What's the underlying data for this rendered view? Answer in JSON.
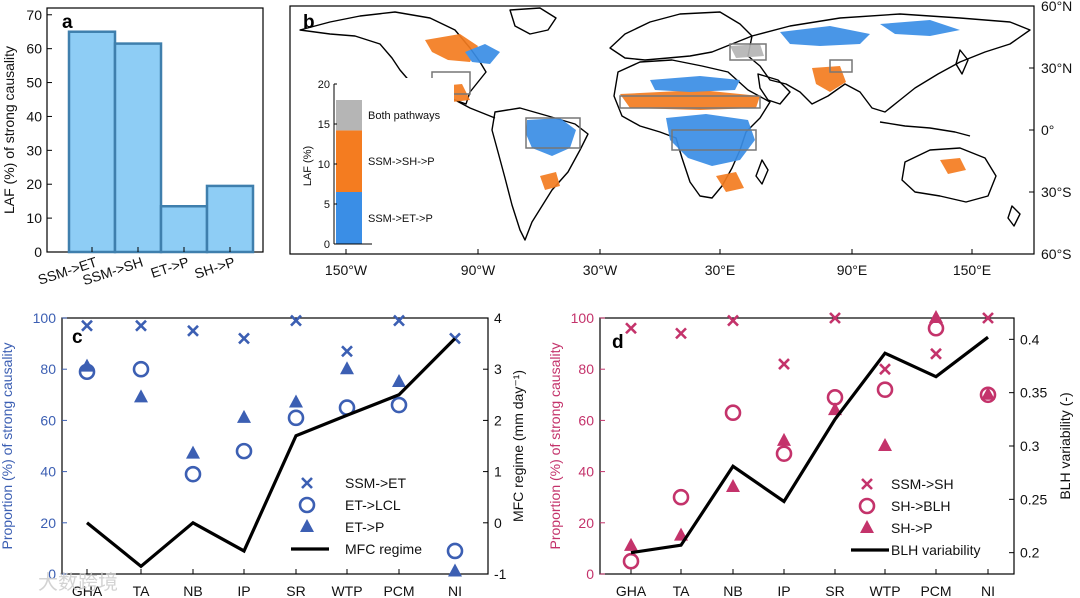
{
  "colors": {
    "bar_fill": "#8ecdf5",
    "bar_stroke": "#3f7fad",
    "blue": "#3c5fb3",
    "pink": "#c4336b",
    "orange": "#f47c20",
    "map_blue": "#3a8ee6",
    "gray": "#b5b5b5",
    "black": "#000000"
  },
  "watermark": "大数跨境",
  "panel_a": {
    "letter": "a",
    "chart_data": {
      "type": "bar",
      "categories": [
        "SSM->ET",
        "SSM->SH",
        "ET->P",
        "SH->P"
      ],
      "values": [
        65,
        61.5,
        13.5,
        19.5
      ],
      "ylabel": "LAF (%) of strong causality",
      "ylim": [
        0,
        72
      ],
      "yticks": [
        0,
        10,
        20,
        30,
        40,
        50,
        60,
        70
      ]
    }
  },
  "panel_b": {
    "letter": "b",
    "x_ticks": [
      "150°W",
      "90°W",
      "30°W",
      "30°E",
      "90°E",
      "150°E"
    ],
    "y_ticks": [
      "60°N",
      "30°N",
      "0°",
      "30°S",
      "60°S"
    ],
    "inset": {
      "ylabel": "LAF (%)",
      "yticks": [
        0,
        5,
        10,
        15,
        20
      ],
      "ylim": [
        0,
        20
      ],
      "segments": [
        {
          "label": "SSM->ET->P",
          "value": 6.5,
          "color": "#3a8ee6"
        },
        {
          "label": "SSM->SH->P",
          "value": 7.7,
          "color": "#f47c20"
        },
        {
          "label": "Both pathways",
          "value": 3.8,
          "color": "#b5b5b5"
        }
      ]
    }
  },
  "panel_c": {
    "letter": "c",
    "chart_data": {
      "type": "scatter+line",
      "categories": [
        "GHA",
        "TA",
        "NB",
        "IP",
        "SR",
        "WTP",
        "PCM",
        "NI"
      ],
      "ylabel_left": "Proportion (%) of strong causality",
      "ylabel_right": "MFC regime (mm day⁻¹)",
      "ylim_left": [
        0,
        100
      ],
      "ylim_right": [
        -1,
        4
      ],
      "yticks_left": [
        0,
        20,
        40,
        60,
        80,
        100
      ],
      "yticks_right": [
        -1,
        0,
        1,
        2,
        3,
        4
      ],
      "series": [
        {
          "name": "SSM->ET",
          "marker": "x",
          "axis": "left",
          "values": [
            97,
            97,
            95,
            92,
            99,
            87,
            99,
            92
          ]
        },
        {
          "name": "ET->LCL",
          "marker": "circle",
          "axis": "left",
          "values": [
            79,
            80,
            39,
            48,
            61,
            65,
            66,
            9
          ]
        },
        {
          "name": "ET->P",
          "marker": "triangle",
          "axis": "left",
          "values": [
            81,
            69,
            47,
            61,
            67,
            80,
            75,
            1
          ]
        },
        {
          "name": "MFC regime",
          "marker": "line",
          "axis": "right",
          "values": [
            0,
            -0.85,
            0,
            -0.55,
            1.7,
            2.1,
            2.5,
            3.6
          ]
        }
      ]
    }
  },
  "panel_d": {
    "letter": "d",
    "chart_data": {
      "type": "scatter+line",
      "categories": [
        "GHA",
        "TA",
        "NB",
        "IP",
        "SR",
        "WTP",
        "PCM",
        "NI"
      ],
      "ylabel_left": "Proportion (%) of strong causality",
      "ylabel_right": "BLH variability (-)",
      "ylim_left": [
        0,
        100
      ],
      "ylim_right": [
        0.18,
        0.42
      ],
      "yticks_left": [
        0,
        20,
        40,
        60,
        80,
        100
      ],
      "yticks_right": [
        0.2,
        0.25,
        0.3,
        0.35,
        0.4
      ],
      "series": [
        {
          "name": "SSM->SH",
          "marker": "x",
          "axis": "left",
          "values": [
            96,
            94,
            99,
            82,
            100,
            80,
            86,
            100
          ]
        },
        {
          "name": "SH->BLH",
          "marker": "circle",
          "axis": "left",
          "values": [
            5,
            30,
            63,
            47,
            69,
            72,
            96,
            70
          ]
        },
        {
          "name": "SH->P",
          "marker": "triangle",
          "axis": "left",
          "values": [
            11,
            15,
            34,
            52,
            64,
            50,
            100,
            70
          ]
        },
        {
          "name": "BLH variability",
          "marker": "line",
          "axis": "right",
          "values": [
            0.2,
            0.207,
            0.281,
            0.248,
            0.325,
            0.387,
            0.365,
            0.402
          ]
        }
      ]
    }
  }
}
